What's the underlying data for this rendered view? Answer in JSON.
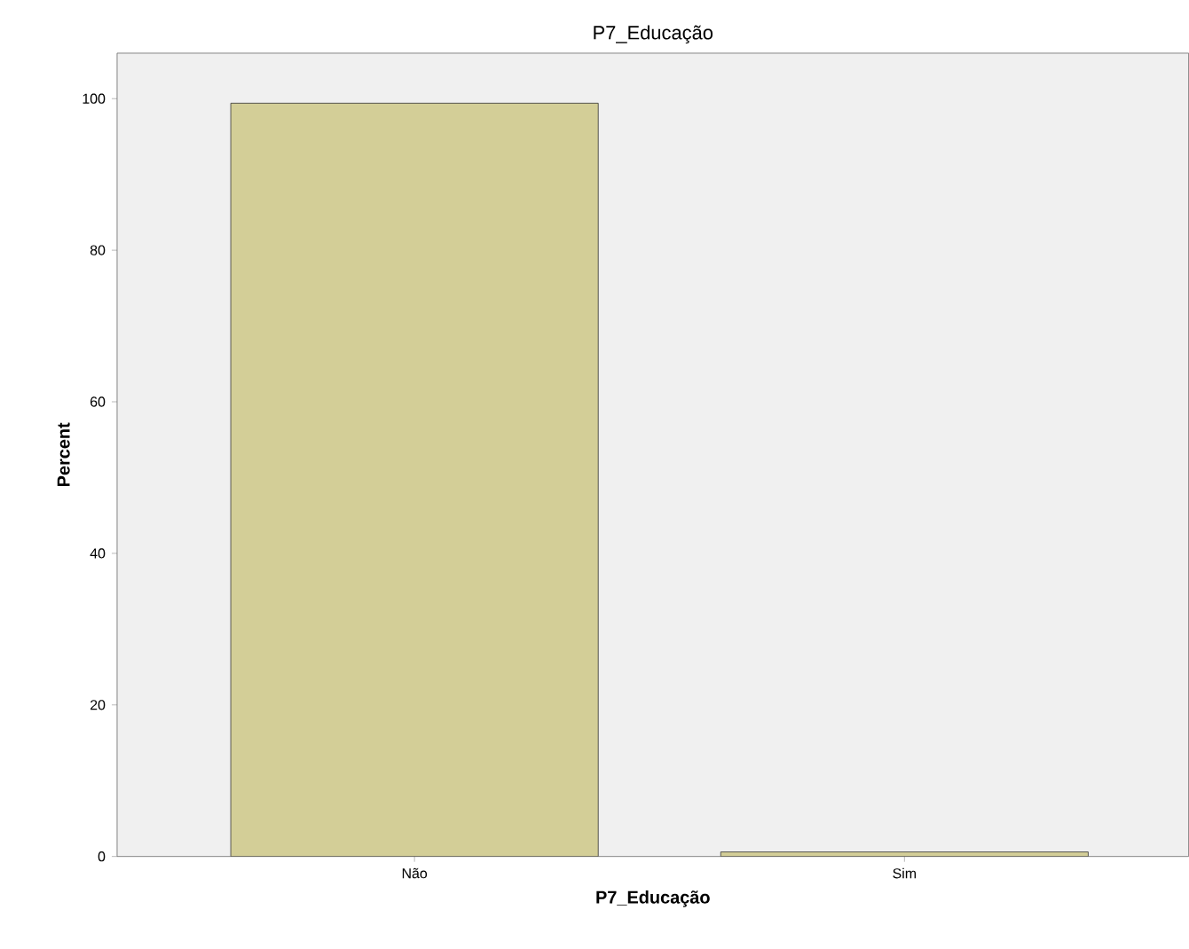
{
  "chart_data": {
    "type": "bar",
    "title": "P7_Educação",
    "xlabel": "P7_Educação",
    "ylabel": "Percent",
    "categories": [
      "Não",
      "Sim"
    ],
    "values": [
      99.4,
      0.6
    ],
    "color": "#d3ce97",
    "ylim": [
      0,
      106
    ],
    "yticks": [
      0,
      20,
      40,
      60,
      80,
      100
    ]
  }
}
